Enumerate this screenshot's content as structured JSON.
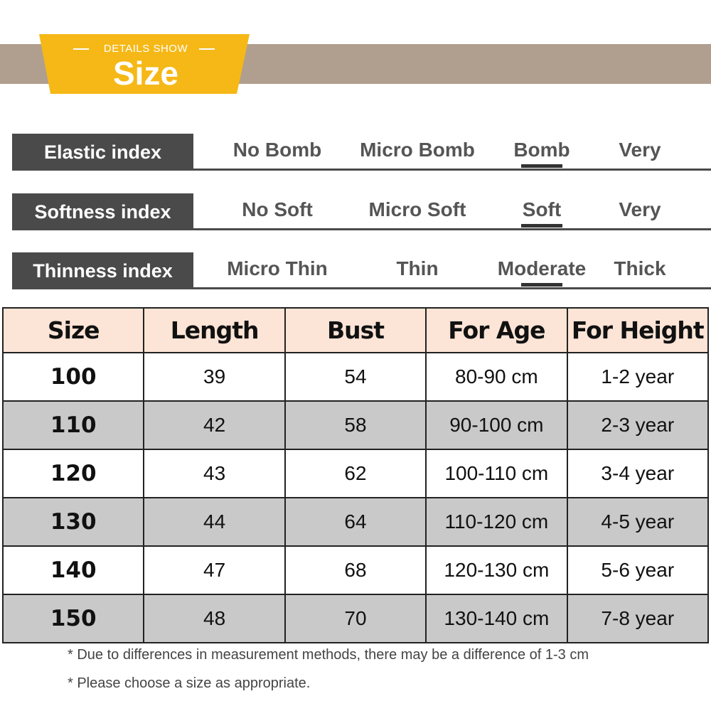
{
  "header": {
    "label": "DETAILS SHOW",
    "title": "Size"
  },
  "indices": [
    {
      "name": "Elastic index",
      "options": [
        "No Bomb",
        "Micro Bomb",
        "Bomb",
        "Very"
      ],
      "selected": 2
    },
    {
      "name": "Softness index",
      "options": [
        "No Soft",
        "Micro Soft",
        "Soft",
        "Very"
      ],
      "selected": 2
    },
    {
      "name": "Thinness index",
      "options": [
        "Micro Thin",
        "Thin",
        "Moderate",
        "Thick"
      ],
      "selected": 2
    }
  ],
  "table": {
    "header": [
      "Size",
      "Length",
      "Bust",
      "For Age",
      "For Height"
    ],
    "rows": [
      [
        "100",
        "39",
        "54",
        "80-90 cm",
        "1-2 year"
      ],
      [
        "110",
        "42",
        "58",
        "90-100 cm",
        "2-3 year"
      ],
      [
        "120",
        "43",
        "62",
        "100-110 cm",
        "3-4 year"
      ],
      [
        "130",
        "44",
        "64",
        "110-120 cm",
        "4-5 year"
      ],
      [
        "140",
        "47",
        "68",
        "120-130 cm",
        "5-6 year"
      ],
      [
        "150",
        "48",
        "70",
        "130-140 cm",
        "7-8 year"
      ]
    ]
  },
  "notes": [
    "* Due to differences in measurement methods, there may be a difference of 1-3 cm",
    "* Please choose a size as appropriate."
  ]
}
